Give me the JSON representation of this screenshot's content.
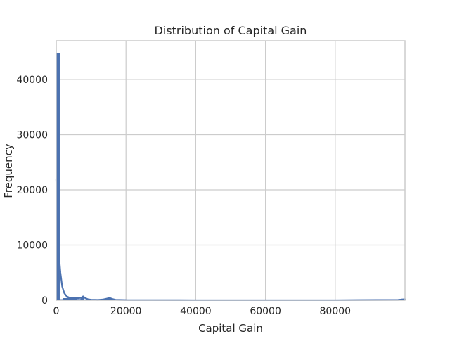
{
  "chart_data": {
    "type": "histogram",
    "title": "Distribution of Capital Gain",
    "xlabel": "Capital Gain",
    "ylabel": "Frequency",
    "xlim": [
      0,
      99999
    ],
    "ylim": [
      0,
      47000
    ],
    "xticks": [
      0,
      20000,
      40000,
      60000,
      80000
    ],
    "yticks": [
      0,
      10000,
      20000,
      30000,
      40000
    ],
    "grid": true,
    "color": "#4c72b0",
    "series": [
      {
        "kind": "histogram",
        "bins": [
          {
            "x0": 0,
            "x1": 1000,
            "count": 44800
          },
          {
            "x0": 1000,
            "x1": 2000,
            "count": 150
          },
          {
            "x0": 2000,
            "x1": 3000,
            "count": 350
          },
          {
            "x0": 3000,
            "x1": 4000,
            "count": 420
          },
          {
            "x0": 4000,
            "x1": 5000,
            "count": 480
          },
          {
            "x0": 5000,
            "x1": 6000,
            "count": 330
          },
          {
            "x0": 6000,
            "x1": 7000,
            "count": 180
          },
          {
            "x0": 7000,
            "x1": 8000,
            "count": 600
          },
          {
            "x0": 8000,
            "x1": 9000,
            "count": 120
          },
          {
            "x0": 14000,
            "x1": 15000,
            "count": 250
          },
          {
            "x0": 15000,
            "x1": 16000,
            "count": 380
          },
          {
            "x0": 99000,
            "x1": 99999,
            "count": 240
          }
        ]
      },
      {
        "kind": "kde",
        "x": [
          0,
          150,
          300,
          500,
          800,
          1200,
          1700,
          2300,
          3000,
          3700,
          4500,
          5500,
          6500,
          7200,
          7700,
          8300,
          9000,
          10000,
          12000,
          13500,
          14500,
          15300,
          16000,
          17000,
          20000,
          40000,
          60000,
          80000,
          98000,
          99999
        ],
        "y": [
          22000,
          17000,
          14000,
          10500,
          8000,
          5000,
          2500,
          1300,
          700,
          500,
          420,
          380,
          380,
          480,
          700,
          400,
          200,
          100,
          60,
          150,
          300,
          420,
          250,
          80,
          30,
          10,
          10,
          10,
          60,
          200
        ]
      }
    ]
  }
}
